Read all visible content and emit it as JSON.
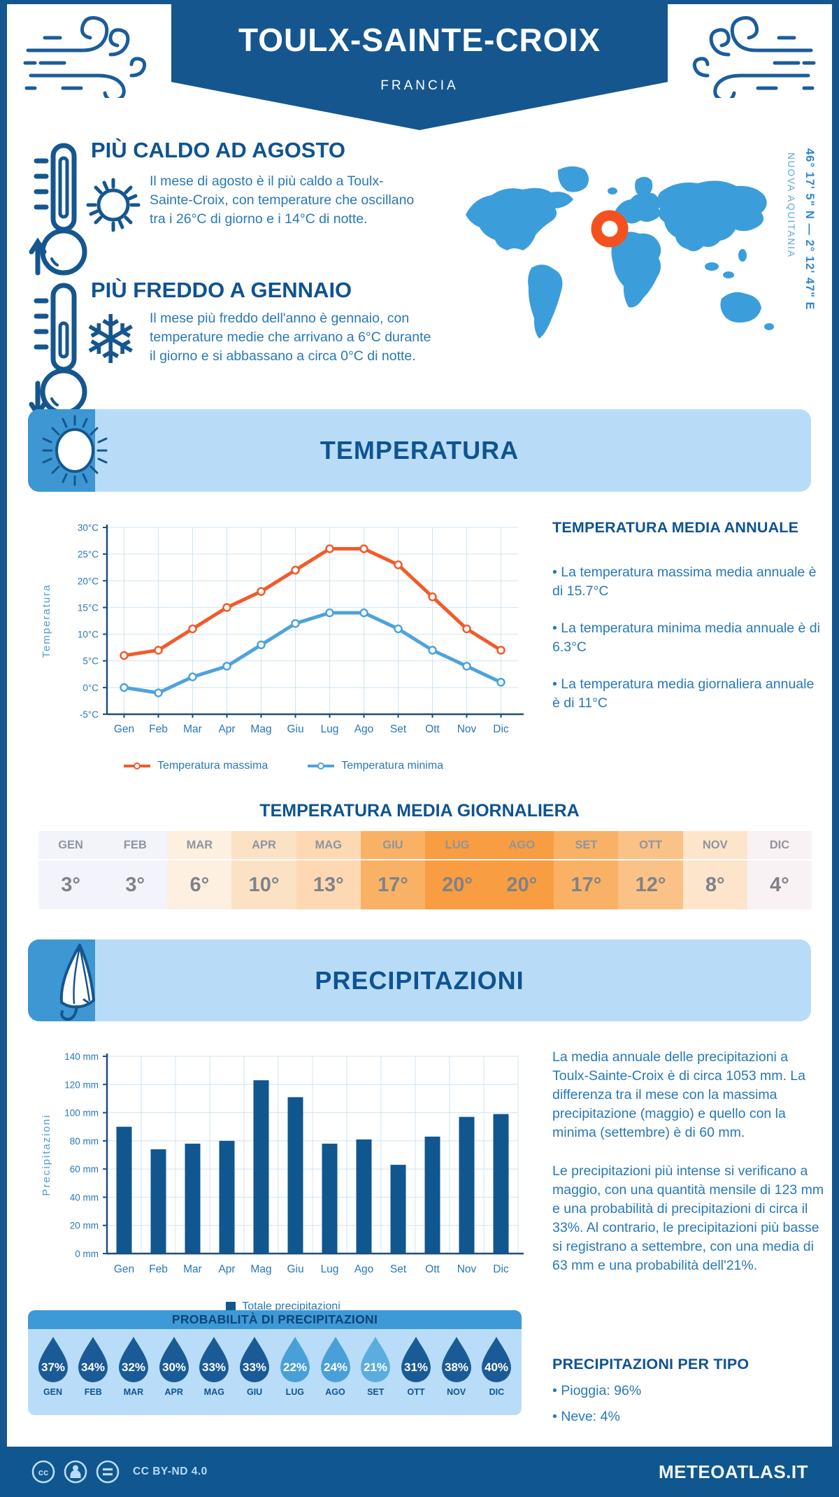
{
  "header": {
    "title": "TOULX-SAINTE-CROIX",
    "subtitle": "FRANCIA"
  },
  "highlights": [
    {
      "heading": "PIÙ CALDO AD AGOSTO",
      "text": "Il mese di agosto è il più caldo a Toulx-Sainte-Croix, con temperature che oscillano tra i 26°C di giorno e i 14°C di notte."
    },
    {
      "heading": "PIÙ FREDDO A GENNAIO",
      "text": "Il mese più freddo dell'anno è gennaio, con temperature medie che arrivano a 6°C durante il giorno e si abbassano a circa 0°C di notte."
    }
  ],
  "map": {
    "coordinates": "46° 17' 5\" N — 2° 12' 47\" E",
    "region": "NUOVA AQUITANIA",
    "marker_color": "#f4511e",
    "land_color": "#3b9edb"
  },
  "temperature_section": {
    "band_title": "TEMPERATURA",
    "annual": {
      "heading": "TEMPERATURA MEDIA ANNUALE",
      "bullets": [
        "• La temperatura massima media annuale è di 15.7°C",
        "• La temperatura minima media annuale è di 6.3°C",
        "• La temperatura media giornaliera annuale è di 11°C"
      ]
    },
    "daily": {
      "heading": "TEMPERATURA MEDIA GIORNALIERA",
      "months": [
        "GEN",
        "FEB",
        "MAR",
        "APR",
        "MAG",
        "GIU",
        "LUG",
        "AGO",
        "SET",
        "OTT",
        "NOV",
        "DIC"
      ],
      "values": [
        "3°",
        "3°",
        "6°",
        "10°",
        "13°",
        "17°",
        "20°",
        "20°",
        "17°",
        "12°",
        "8°",
        "4°"
      ],
      "cell_colors": [
        "#f3f4fb",
        "#f3f4fb",
        "#fdf0e1",
        "#fce2c5",
        "#fdd8b2",
        "#f9b265",
        "#f89d41",
        "#f89d41",
        "#f9b265",
        "#fbc287",
        "#fde5cb",
        "#f8f2f4"
      ]
    }
  },
  "precipitation_section": {
    "band_title": "PRECIPITAZIONI",
    "paragraphs": [
      "La media annuale delle precipitazioni a Toulx-Sainte-Croix è di circa 1053 mm. La differenza tra il mese con la massima precipitazione (maggio) e quello con la minima (settembre) è di 60 mm.",
      "Le precipitazioni più intense si verificano a maggio, con una quantità mensile di 123 mm e una probabilità di precipitazioni di circa il 33%. Al contrario, le precipitazioni più basse si registrano a settembre, con una media di 63 mm e una probabilità dell'21%."
    ],
    "probability": {
      "heading": "PROBABILITÀ DI PRECIPITAZIONI",
      "months": [
        "GEN",
        "FEB",
        "MAR",
        "APR",
        "MAG",
        "GIU",
        "LUG",
        "AGO",
        "SET",
        "OTT",
        "NOV",
        "DIC"
      ],
      "values": [
        "37%",
        "34%",
        "32%",
        "30%",
        "33%",
        "33%",
        "22%",
        "24%",
        "21%",
        "31%",
        "38%",
        "40%"
      ],
      "drop_colors": [
        "#1a5b97",
        "#1a5b97",
        "#1a5b97",
        "#1a5b97",
        "#1a5b97",
        "#1a5b97",
        "#49a0d8",
        "#49a0d8",
        "#5badde",
        "#1a5b97",
        "#1a5b97",
        "#1a5b97"
      ]
    },
    "by_type": {
      "heading": "PRECIPITAZIONI PER TIPO",
      "bullets": [
        "• Pioggia: 96%",
        "• Neve: 4%"
      ]
    }
  },
  "chart_data": [
    {
      "type": "line",
      "title": "",
      "categories": [
        "Gen",
        "Feb",
        "Mar",
        "Apr",
        "Mag",
        "Giu",
        "Lug",
        "Ago",
        "Set",
        "Ott",
        "Nov",
        "Dic"
      ],
      "series": [
        {
          "name": "Temperatura massima",
          "color": "#f15b2a",
          "values": [
            6,
            7,
            11,
            15,
            18,
            22,
            26,
            26,
            23,
            17,
            11,
            7
          ]
        },
        {
          "name": "Temperatura minima",
          "color": "#4da3dd",
          "values": [
            0,
            -1,
            2,
            4,
            8,
            12,
            14,
            14,
            11,
            7,
            4,
            1
          ]
        }
      ],
      "xlabel": "",
      "ylabel": "Temperatura",
      "ylim": [
        -5,
        30
      ],
      "ytick_step": 5,
      "ytick_suffix": "°C",
      "grid": true,
      "legend_position": "bottom"
    },
    {
      "type": "bar",
      "title": "",
      "categories": [
        "Gen",
        "Feb",
        "Mar",
        "Apr",
        "Mag",
        "Giu",
        "Lug",
        "Ago",
        "Set",
        "Ott",
        "Nov",
        "Dic"
      ],
      "series": [
        {
          "name": "Totale precipitazioni",
          "color": "#10568f",
          "values": [
            90,
            74,
            78,
            80,
            123,
            111,
            78,
            81,
            63,
            83,
            97,
            99
          ]
        }
      ],
      "xlabel": "",
      "ylabel": "Precipitazioni",
      "ylim": [
        0,
        140
      ],
      "ytick_step": 20,
      "ytick_suffix": " mm",
      "grid": true,
      "legend_position": "bottom"
    }
  ],
  "footer": {
    "license": "CC BY-ND 4.0",
    "site": "METEOATLAS.IT"
  }
}
